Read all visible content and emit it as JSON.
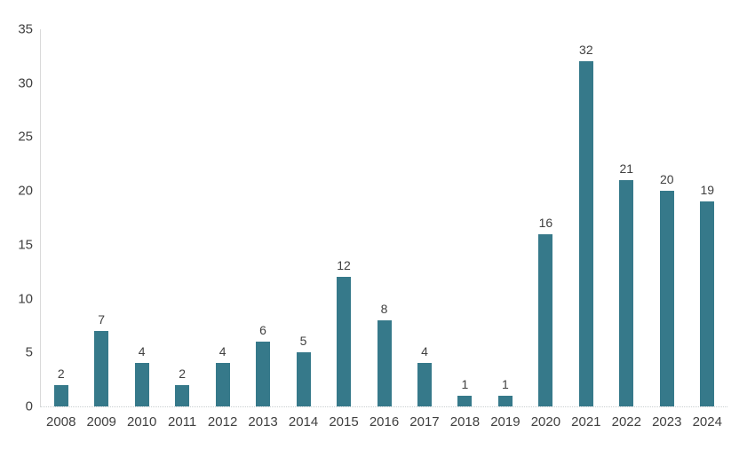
{
  "chart_data": {
    "type": "bar",
    "title": "",
    "xlabel": "",
    "ylabel": "",
    "categories": [
      "2008",
      "2009",
      "2010",
      "2011",
      "2012",
      "2013",
      "2014",
      "2015",
      "2016",
      "2017",
      "2018",
      "2019",
      "2020",
      "2021",
      "2022",
      "2023",
      "2024"
    ],
    "values": [
      2,
      7,
      4,
      2,
      4,
      6,
      5,
      12,
      8,
      4,
      1,
      1,
      16,
      32,
      21,
      20,
      19
    ],
    "data_labels_shown": true,
    "ylim": [
      0,
      35
    ],
    "yticks": [
      0,
      5,
      10,
      15,
      20,
      25,
      30,
      35
    ],
    "grid": "off",
    "legend": "none",
    "bar_color": "#36798a",
    "label_color": "#404040",
    "axis_line_color": "#d9d9d9",
    "background": "#ffffff"
  }
}
